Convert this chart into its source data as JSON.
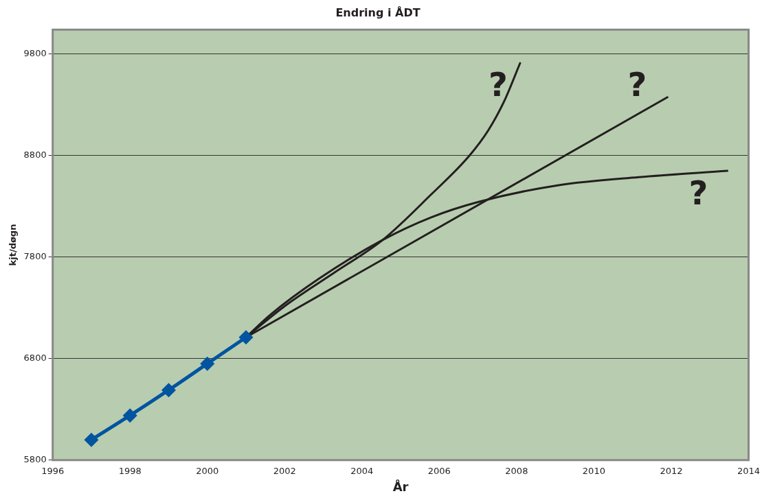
{
  "chart_data": {
    "type": "line",
    "title": "Endring i ÅDT",
    "xlabel": "År",
    "ylabel": "kjt/døgn",
    "xlim": [
      1996,
      2014
    ],
    "xticks": [
      1996,
      1998,
      2000,
      2002,
      2004,
      2006,
      2008,
      2010,
      2012,
      2014
    ],
    "ylim": [
      5800,
      10040
    ],
    "yticks": [
      5800,
      6800,
      7800,
      8800,
      9800
    ],
    "grid": "y",
    "legend": false,
    "marker": "diamond",
    "line_style": "solid",
    "series": [
      {
        "color": "#0054a0",
        "x": [
          1997,
          1998,
          1999,
          2000,
          2001
        ],
        "values": [
          6000,
          6240,
          6490,
          6750,
          7010
        ]
      },
      {
        "color": "#231f20",
        "marker": "none",
        "x": [
          2001,
          2002.05,
          2003.29,
          2004.54,
          2005.78,
          2006.77,
          2007.27,
          2007.68,
          2008.09
        ],
        "values": [
          7010,
          7330,
          7648,
          7970,
          8413,
          8795,
          9050,
          9336,
          9710
        ]
      },
      {
        "color": "#231f20",
        "marker": "none",
        "x": [
          2001,
          2011.9
        ],
        "values": [
          7010,
          9374
        ]
      },
      {
        "color": "#231f20",
        "marker": "none",
        "x": [
          2001,
          2001.64,
          2002.88,
          2004.54,
          2005.78,
          2007.02,
          2009.09,
          2011.16,
          2013.45
        ],
        "values": [
          7010,
          7235,
          7585,
          7970,
          8190,
          8344,
          8508,
          8587,
          8649
        ]
      }
    ],
    "annotations": [
      "?",
      "?",
      "?"
    ]
  }
}
